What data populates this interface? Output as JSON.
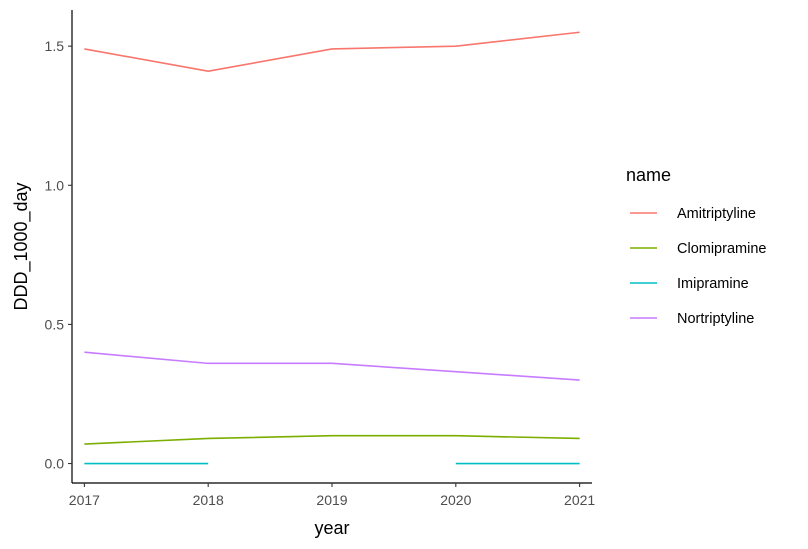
{
  "chart_data": {
    "type": "line",
    "xlabel": "year",
    "ylabel": "DDD_1000_day",
    "x_ticks": [
      "2017",
      "2018",
      "2019",
      "2020",
      "2021"
    ],
    "y_ticks": [
      "0.0",
      "0.5",
      "1.0",
      "1.5"
    ],
    "xlim": [
      2016.9,
      2021.1
    ],
    "ylim": [
      -0.07,
      1.63
    ],
    "grid": false,
    "legend": {
      "title": "name",
      "position": "right"
    },
    "series": [
      {
        "name": "Amitriptyline",
        "color": "#F8766D",
        "points": [
          [
            2017,
            1.49
          ],
          [
            2018,
            1.41
          ],
          [
            2019,
            1.49
          ],
          [
            2020,
            1.5
          ],
          [
            2021,
            1.55
          ]
        ]
      },
      {
        "name": "Clomipramine",
        "color": "#7CAE00",
        "points": [
          [
            2017,
            0.07
          ],
          [
            2018,
            0.09
          ],
          [
            2019,
            0.1
          ],
          [
            2020,
            0.1
          ],
          [
            2021,
            0.09
          ]
        ]
      },
      {
        "name": "Imipramine",
        "color": "#00BFC4",
        "segments": [
          [
            [
              2017,
              0.0
            ],
            [
              2018,
              0.0
            ]
          ],
          [
            [
              2020,
              0.0
            ],
            [
              2021,
              0.0
            ]
          ]
        ]
      },
      {
        "name": "Nortriptyline",
        "color": "#C77CFF",
        "points": [
          [
            2017,
            0.4
          ],
          [
            2018,
            0.36
          ],
          [
            2019,
            0.36
          ],
          [
            2020,
            0.33
          ],
          [
            2021,
            0.3
          ]
        ]
      }
    ]
  }
}
